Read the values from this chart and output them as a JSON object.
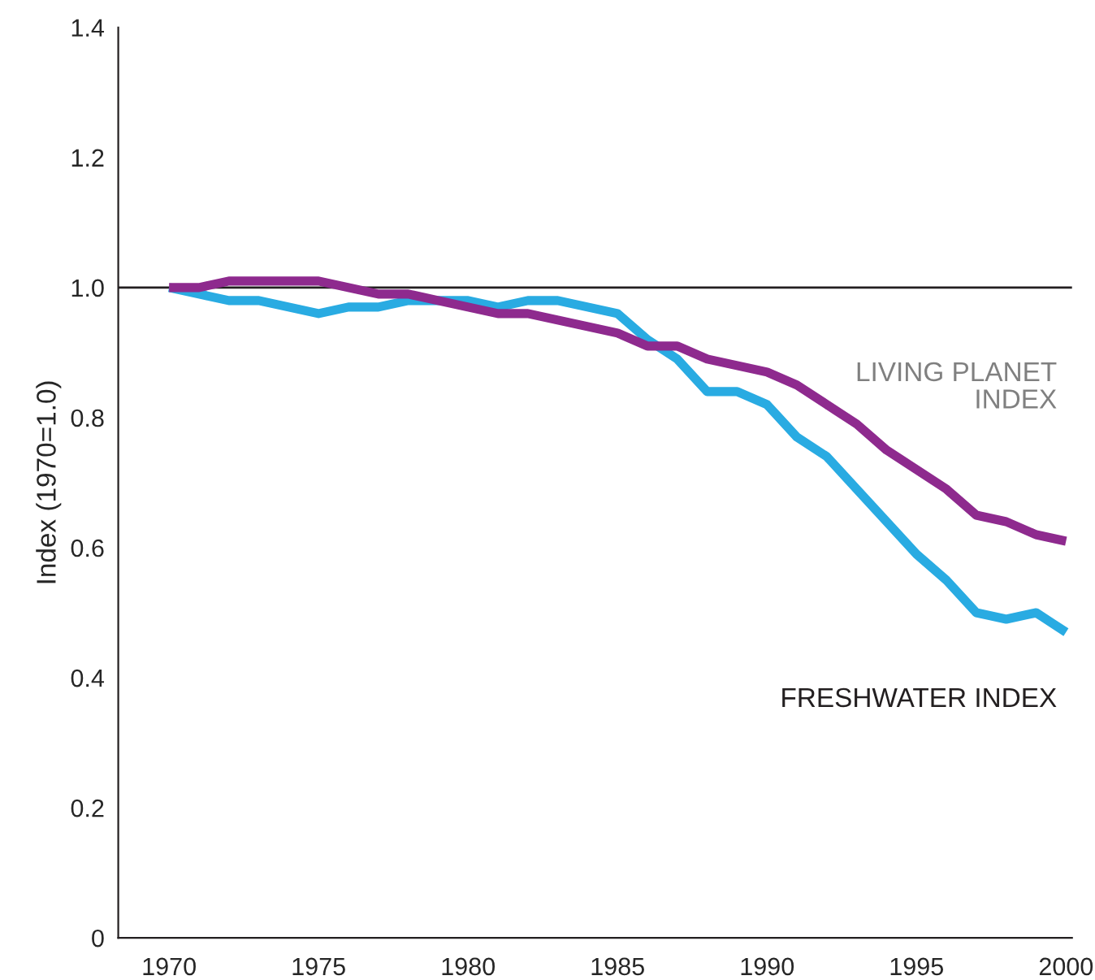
{
  "chart_data": {
    "type": "line",
    "ylabel": "Index (1970=1.0)",
    "x": [
      1970,
      1971,
      1972,
      1973,
      1974,
      1975,
      1976,
      1977,
      1978,
      1979,
      1980,
      1981,
      1982,
      1983,
      1984,
      1985,
      1986,
      1987,
      1988,
      1989,
      1990,
      1991,
      1992,
      1993,
      1994,
      1995,
      1996,
      1997,
      1998,
      1999,
      2000
    ],
    "series": [
      {
        "name": "LIVING PLANET INDEX",
        "color": "#8e2a8e",
        "values": [
          1.0,
          1.0,
          1.01,
          1.01,
          1.01,
          1.01,
          1.0,
          0.99,
          0.99,
          0.98,
          0.97,
          0.96,
          0.96,
          0.95,
          0.94,
          0.93,
          0.91,
          0.91,
          0.89,
          0.88,
          0.87,
          0.85,
          0.82,
          0.79,
          0.75,
          0.72,
          0.69,
          0.65,
          0.64,
          0.62,
          0.61
        ]
      },
      {
        "name": "FRESHWATER INDEX",
        "color": "#29abe2",
        "values": [
          1.0,
          0.99,
          0.98,
          0.98,
          0.97,
          0.96,
          0.97,
          0.97,
          0.98,
          0.98,
          0.98,
          0.97,
          0.98,
          0.98,
          0.97,
          0.96,
          0.92,
          0.89,
          0.84,
          0.84,
          0.82,
          0.77,
          0.74,
          0.69,
          0.64,
          0.59,
          0.55,
          0.5,
          0.49,
          0.5,
          0.47
        ]
      }
    ],
    "xlim": [
      1968.3,
      2000.2
    ],
    "ylim": [
      0,
      1.4
    ],
    "xticks": [
      1970,
      1975,
      1980,
      1985,
      1990,
      1995,
      2000
    ],
    "yticks": [
      {
        "value": 0,
        "label": "0"
      },
      {
        "value": 0.2,
        "label": "0.2"
      },
      {
        "value": 0.4,
        "label": "0.4"
      },
      {
        "value": 0.6,
        "label": "0.6"
      },
      {
        "value": 0.8,
        "label": "0.8"
      },
      {
        "value": 1.0,
        "label": "1.0"
      },
      {
        "value": 1.2,
        "label": "1.2"
      },
      {
        "value": 1.4,
        "label": "1.4"
      }
    ],
    "ref_lines": [
      {
        "axis": "y",
        "value": 1.0,
        "color": "#231f20"
      }
    ],
    "grid": false,
    "legend": false,
    "line_style": "solid",
    "marker": "none"
  }
}
